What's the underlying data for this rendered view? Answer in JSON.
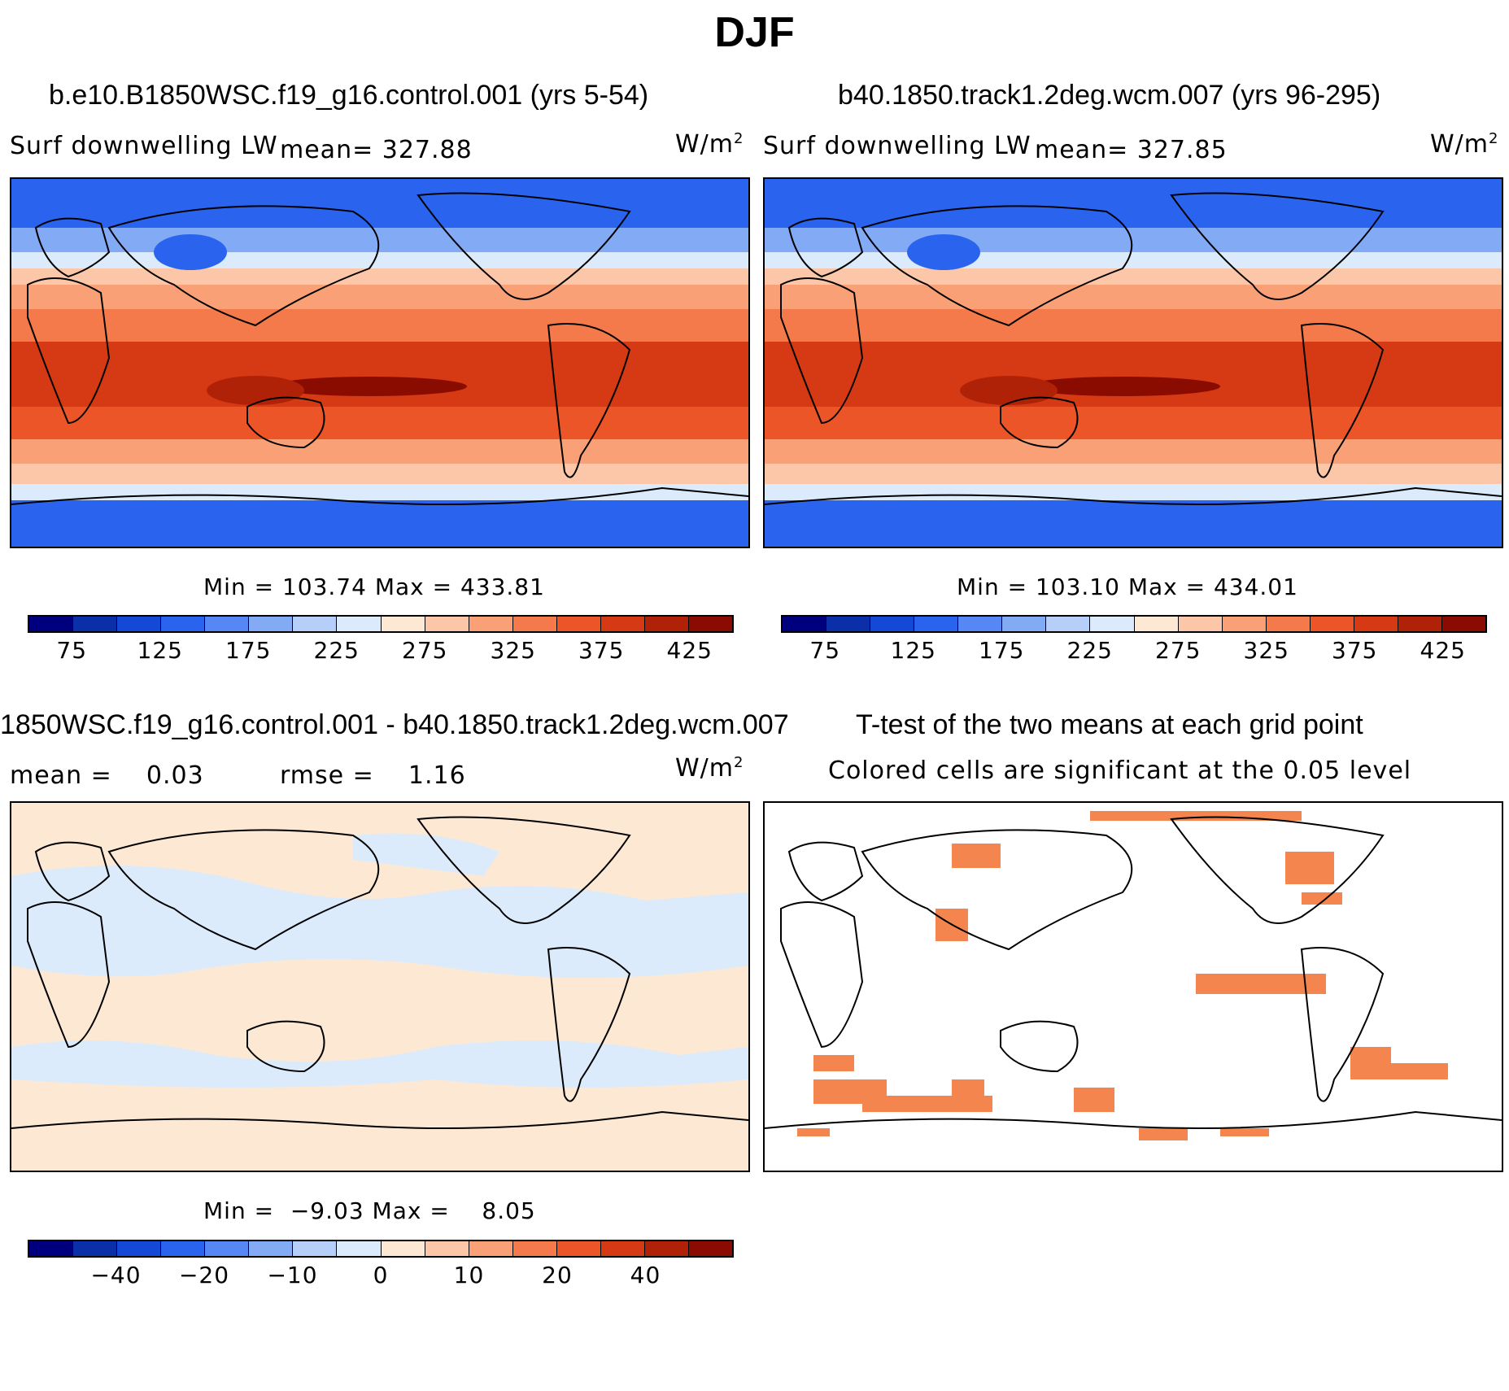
{
  "figure": {
    "title": "DJF"
  },
  "panels": {
    "p1": {
      "title": "b.e10.B1850WSC.f19_g16.control.001 (yrs 5-54)",
      "variable": "Surf downwelling LW",
      "mean_label": "mean= 327.88",
      "units": "W/m",
      "units_sup": "2",
      "minmax": "Min = 103.74 Max = 433.81"
    },
    "p2": {
      "title": "b40.1850.track1.2deg.wcm.007 (yrs 96-295)",
      "variable": "Surf downwelling LW",
      "mean_label": "mean= 327.85",
      "units": "W/m",
      "units_sup": "2",
      "minmax": "Min = 103.10 Max = 434.01"
    },
    "p3": {
      "title": "1850WSC.f19_g16.control.001 - b40.1850.track1.2deg.wcm.007",
      "mean_text": "mean =    0.03",
      "rmse_text": "rmse =    1.16",
      "units": "W/m",
      "units_sup": "2",
      "minmax": "Min =  −9.03 Max =    8.05"
    },
    "p4": {
      "title": "T-test of the two means at each grid point",
      "subtitle": "Colored cells are significant at the 0.05 level"
    }
  },
  "colorbars": {
    "abs": {
      "colors": [
        "#00007f",
        "#0a2fa8",
        "#1449d8",
        "#2a64ee",
        "#5588f5",
        "#82aaf5",
        "#b5cff8",
        "#dcebfb",
        "#fde8d3",
        "#fcc7a8",
        "#f9a077",
        "#f57a4b",
        "#eb5528",
        "#d63a14",
        "#b02208",
        "#8a0c00"
      ],
      "ticks": [
        "75",
        "125",
        "175",
        "225",
        "275",
        "325",
        "375",
        "425"
      ]
    },
    "diff": {
      "colors": [
        "#00007f",
        "#0a2fa8",
        "#1449d8",
        "#2a64ee",
        "#5588f5",
        "#82aaf5",
        "#b5cff8",
        "#dcebfb",
        "#fde8d3",
        "#fcc7a8",
        "#f9a077",
        "#f57a4b",
        "#eb5528",
        "#d63a14",
        "#b02208",
        "#8a0c00"
      ],
      "ticks": [
        "−40",
        "−20",
        "−10",
        "0",
        "10",
        "20",
        "40"
      ]
    }
  },
  "map_colors": {
    "cold": "#2a64ee",
    "cool": "#82aaf5",
    "pale_blue": "#dcebfb",
    "pale_orange": "#fde8d3",
    "warm": "#f57a4b",
    "hot": "#d63a14",
    "hottest": "#8a0c00",
    "signif": "#f5854f"
  }
}
